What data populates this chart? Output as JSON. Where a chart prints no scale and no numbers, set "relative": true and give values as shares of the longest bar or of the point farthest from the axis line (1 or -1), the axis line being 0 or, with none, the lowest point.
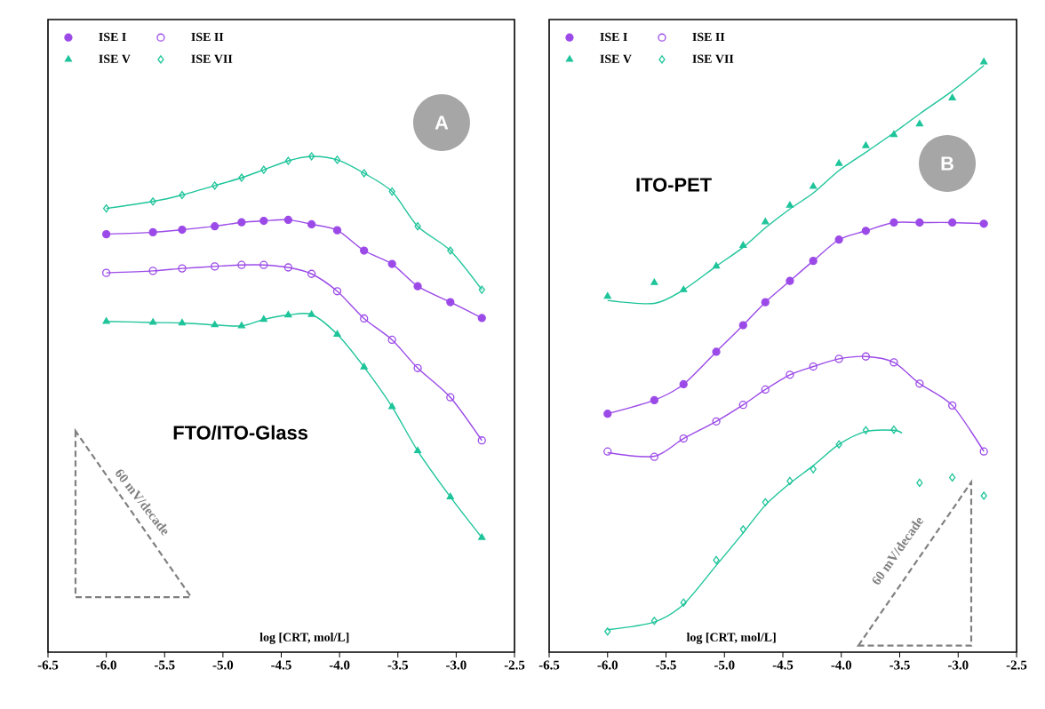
{
  "chart_data": [
    {
      "type": "scatter",
      "relative": true,
      "xlabel": "log [CRT, mol/L]",
      "legend": "top left",
      "xlim": [
        -6.5,
        -2.5
      ],
      "xticks": [
        -6.5,
        {
          "value": -6,
          "label": "-6.0"
        },
        -5.5,
        {
          "value": -5,
          "label": "-5.0"
        },
        -4.5,
        {
          "value": -4,
          "label": "-4.0"
        },
        -3.5,
        {
          "value": -3,
          "label": "-3.0"
        },
        -2.5
      ],
      "x": [
        -6.0,
        -5.6,
        -5.35,
        -5.07,
        -4.84,
        -4.65,
        -4.44,
        -4.24,
        -4.02,
        -3.79,
        -3.55,
        -3.33,
        -3.05,
        -2.78
      ],
      "annotations": [
        "A",
        "FTO/ITO-Glass",
        "60 mV/decade"
      ],
      "series": [
        {
          "name": "ISE I",
          "marker": "circle",
          "color": "#9b4ae8",
          "values": [
            0.843,
            0.847,
            0.852,
            0.859,
            0.867,
            0.87,
            0.872,
            0.863,
            0.851,
            0.81,
            0.783,
            0.738,
            0.706,
            0.674
          ]
        },
        {
          "name": "ISE II",
          "marker": "circle",
          "color": "#9b4ae8",
          "values": [
            0.765,
            0.769,
            0.774,
            0.778,
            0.781,
            0.781,
            0.776,
            0.763,
            0.728,
            0.673,
            0.63,
            0.573,
            0.514,
            0.427
          ]
        },
        {
          "name": "ISE V",
          "marker": "triangle",
          "color": "#1ec49a",
          "values": [
            0.667,
            0.665,
            0.664,
            0.66,
            0.658,
            0.671,
            0.68,
            0.681,
            0.641,
            0.575,
            0.495,
            0.406,
            0.313,
            0.231
          ]
        },
        {
          "name": "ISE VII",
          "marker": "diamond",
          "color": "#1ec49a",
          "values": [
            0.895,
            0.909,
            0.922,
            0.941,
            0.957,
            0.973,
            0.991,
            1.0,
            0.993,
            0.966,
            0.929,
            0.859,
            0.81,
            0.731
          ]
        },
        {
          "type": "line",
          "color": "#9b4ae8",
          "x": [
            -6.0,
            -5.6,
            -5.35,
            -5.07,
            -4.84,
            -4.65,
            -4.44,
            -4.24,
            -4.02,
            -3.79,
            -3.55,
            -3.33,
            -3.05,
            -2.78
          ],
          "values": [
            0.843,
            0.847,
            0.852,
            0.859,
            0.867,
            0.87,
            0.872,
            0.863,
            0.851,
            0.81,
            0.783,
            0.738,
            0.706,
            0.674
          ]
        },
        {
          "type": "line",
          "color": "#9b4ae8",
          "x": [
            -6.0,
            -5.6,
            -5.35,
            -5.07,
            -4.84,
            -4.65,
            -4.44,
            -4.24,
            -4.02,
            -3.79,
            -3.55,
            -3.33,
            -3.05,
            -2.78
          ],
          "values": [
            0.765,
            0.769,
            0.774,
            0.778,
            0.781,
            0.781,
            0.776,
            0.763,
            0.728,
            0.673,
            0.63,
            0.573,
            0.514,
            0.427
          ]
        },
        {
          "type": "line",
          "color": "#1ec49a",
          "x": [
            -6.0,
            -5.6,
            -5.35,
            -5.07,
            -4.84,
            -4.65,
            -4.44,
            -4.24,
            -4.02,
            -3.79,
            -3.55,
            -3.33,
            -3.05,
            -2.78
          ],
          "values": [
            0.667,
            0.665,
            0.664,
            0.66,
            0.658,
            0.671,
            0.68,
            0.681,
            0.641,
            0.575,
            0.495,
            0.406,
            0.313,
            0.231
          ]
        },
        {
          "type": "line",
          "color": "#1ec49a",
          "x": [
            -6.0,
            -5.6,
            -5.35,
            -5.07,
            -4.84,
            -4.65,
            -4.44,
            -4.24,
            -4.02,
            -3.79,
            -3.55,
            -3.33,
            -3.05,
            -2.78
          ],
          "values": [
            0.895,
            0.909,
            0.922,
            0.941,
            0.957,
            0.973,
            0.991,
            1.0,
            0.993,
            0.966,
            0.929,
            0.859,
            0.81,
            0.731
          ]
        }
      ]
    },
    {
      "type": "scatter",
      "relative": true,
      "xlabel": "log [CRT, mol/L]",
      "legend": "top left",
      "xlim": [
        -6.5,
        -2.5
      ],
      "xticks": [
        -6.5,
        {
          "value": -6,
          "label": "-6.0"
        },
        -5.5,
        {
          "value": -5,
          "label": "-5.0"
        },
        -4.5,
        {
          "value": -4,
          "label": "-4.0"
        },
        -3.5,
        {
          "value": -3,
          "label": "-3.0"
        },
        -2.5
      ],
      "x": [
        -6.0,
        -5.6,
        -5.35,
        -5.07,
        -4.84,
        -4.65,
        -4.44,
        -4.24,
        -4.02,
        -3.79,
        -3.55,
        -3.33,
        -3.05,
        -2.78
      ],
      "annotations": [
        "B",
        "ITO-PET",
        "60 mV/decade"
      ],
      "series": [
        {
          "name": "ISE I",
          "marker": "circle",
          "color": "#9b4ae8",
          "values": [
            0.404,
            0.427,
            0.454,
            0.509,
            0.554,
            0.593,
            0.629,
            0.663,
            0.699,
            0.714,
            0.728,
            0.728,
            0.728,
            0.726
          ]
        },
        {
          "name": "ISE II",
          "marker": "circle",
          "color": "#9b4ae8",
          "values": [
            0.34,
            0.331,
            0.362,
            0.391,
            0.419,
            0.445,
            0.47,
            0.484,
            0.497,
            0.501,
            0.491,
            0.455,
            0.418,
            0.34
          ]
        },
        {
          "name": "ISE V",
          "marker": "triangle",
          "color": "#1ec49a",
          "values": [
            0.603,
            0.626,
            0.614,
            0.654,
            0.689,
            0.729,
            0.757,
            0.789,
            0.828,
            0.858,
            0.877,
            0.895,
            0.939,
            1.0
          ]
        },
        {
          "name": "ISE VII",
          "marker": "diamond",
          "color": "#1ec49a",
          "values": [
            0.035,
            0.053,
            0.084,
            0.156,
            0.208,
            0.254,
            0.29,
            0.31,
            0.352,
            0.376,
            0.377,
            0.287,
            0.296,
            0.265
          ]
        },
        {
          "type": "line",
          "color": "#9b4ae8",
          "x": [
            -6.0,
            -5.6,
            -5.35,
            -5.07,
            -4.84,
            -4.65,
            -4.44,
            -4.24,
            -4.02,
            -3.79,
            -3.55,
            -3.33,
            -3.05,
            -2.78
          ],
          "values": [
            0.404,
            0.427,
            0.454,
            0.509,
            0.554,
            0.593,
            0.629,
            0.663,
            0.699,
            0.714,
            0.728,
            0.728,
            0.728,
            0.726
          ]
        },
        {
          "type": "line",
          "color": "#9b4ae8",
          "x": [
            -6.0,
            -5.6,
            -5.35,
            -5.07,
            -4.84,
            -4.65,
            -4.44,
            -4.24,
            -4.02,
            -3.79,
            -3.55,
            -3.33,
            -3.05,
            -2.78
          ],
          "values": [
            0.338,
            0.332,
            0.362,
            0.391,
            0.419,
            0.445,
            0.47,
            0.484,
            0.497,
            0.501,
            0.491,
            0.455,
            0.418,
            0.34
          ]
        },
        {
          "type": "line",
          "color": "#1ec49a",
          "x": [
            -6.0,
            -5.6,
            -5.35,
            -5.07,
            -4.84,
            -4.65,
            -4.44,
            -4.24,
            -4.02,
            -3.79,
            -3.55,
            -3.33,
            -3.05,
            -2.78
          ],
          "values": [
            0.596,
            0.591,
            0.614,
            0.654,
            0.686,
            0.719,
            0.751,
            0.778,
            0.816,
            0.847,
            0.88,
            0.912,
            0.951,
            0.994
          ]
        },
        {
          "type": "line",
          "color": "#1ec49a",
          "x": [
            -6.0,
            -5.6,
            -5.35,
            -5.07,
            -4.84,
            -4.65,
            -4.44,
            -4.24,
            -4.02,
            -3.79,
            -3.55,
            -3.48
          ],
          "values": [
            0.038,
            0.051,
            0.081,
            0.147,
            0.202,
            0.249,
            0.286,
            0.316,
            0.352,
            0.374,
            0.376,
            0.371
          ]
        }
      ]
    }
  ]
}
